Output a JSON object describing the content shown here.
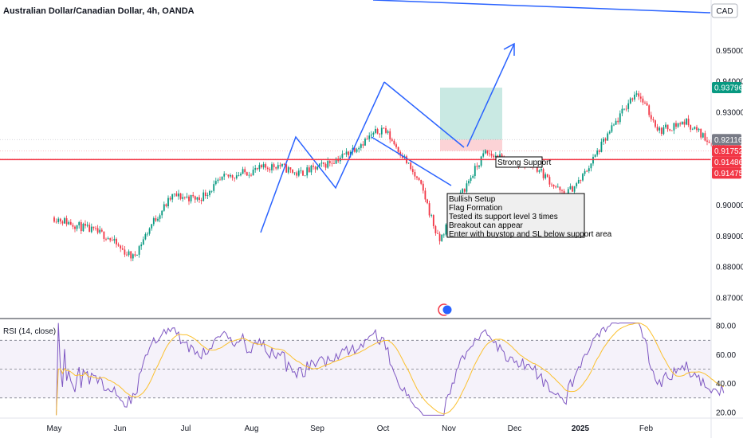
{
  "chart_data": {
    "type": "candlestick",
    "title": "Australian Dollar/Canadian Dollar, 4h, OANDA",
    "currency_label": "CAD",
    "price_axis": {
      "range": [
        0.8633,
        0.9663
      ],
      "ticks": [
        "0.95000",
        "0.94000",
        "0.93000",
        "0.90000",
        "0.89000",
        "0.88000",
        "0.87000"
      ]
    },
    "x_axis": {
      "labels": [
        "May",
        "Jun",
        "Jul",
        "Aug",
        "Sep",
        "Oct",
        "Nov",
        "Dec",
        "2025",
        "Feb"
      ]
    },
    "price_path": [
      {
        "t": 0.0,
        "p": 0.896
      },
      {
        "t": 0.8,
        "p": 0.89
      },
      {
        "t": 1.0,
        "p": 0.886
      },
      {
        "t": 1.2,
        "p": 0.883
      },
      {
        "t": 1.5,
        "p": 0.8945
      },
      {
        "t": 1.8,
        "p": 0.903
      },
      {
        "t": 2.2,
        "p": 0.902
      },
      {
        "t": 2.6,
        "p": 0.909
      },
      {
        "t": 3.0,
        "p": 0.911
      },
      {
        "t": 3.4,
        "p": 0.913
      },
      {
        "t": 3.7,
        "p": 0.91
      },
      {
        "t": 4.0,
        "p": 0.912
      },
      {
        "t": 4.4,
        "p": 0.916
      },
      {
        "t": 4.8,
        "p": 0.922
      },
      {
        "t": 5.0,
        "p": 0.925
      },
      {
        "t": 5.3,
        "p": 0.916
      },
      {
        "t": 5.6,
        "p": 0.905
      },
      {
        "t": 5.85,
        "p": 0.888
      },
      {
        "t": 6.2,
        "p": 0.904
      },
      {
        "t": 6.55,
        "p": 0.917
      },
      {
        "t": 6.9,
        "p": 0.914
      },
      {
        "t": 7.3,
        "p": 0.913
      },
      {
        "t": 7.75,
        "p": 0.903
      },
      {
        "t": 8.0,
        "p": 0.908
      },
      {
        "t": 8.4,
        "p": 0.922
      },
      {
        "t": 8.85,
        "p": 0.937
      },
      {
        "t": 9.2,
        "p": 0.924
      },
      {
        "t": 9.6,
        "p": 0.927
      },
      {
        "t": 10.0,
        "p": 0.92
      },
      {
        "t": 10.2,
        "p": 0.918
      }
    ],
    "current_price": {
      "label": "0.93796",
      "value": 0.93796,
      "color": "#089981"
    },
    "price_tags": [
      {
        "label": "0.92116",
        "value": 0.92116,
        "color": "#787b86"
      },
      {
        "label": "0.91752",
        "value": 0.91752,
        "color": "#f23645"
      },
      {
        "label": "0.91486",
        "value": 0.91486,
        "color": "#f23645"
      },
      {
        "label": "0.91475",
        "value": 0.91475,
        "color": "#f23645"
      }
    ],
    "support_line": {
      "value": 0.9147,
      "color": "#f23645"
    },
    "position": {
      "entry": 0.92116,
      "target": 0.93796,
      "stop": 0.91752
    },
    "annotations": {
      "strong_support": "Strong Support",
      "setup_lines": [
        "Bullish Setup",
        "Flag Formation",
        "Tested its support level 3 times",
        "Breakout can appear",
        "Enter with buystop and SL below support area"
      ]
    },
    "rsi": {
      "label": "RSI (14, close)",
      "range": [
        16,
        84
      ],
      "ticks": [
        "80.00",
        "60.00",
        "40.00",
        "20.00"
      ],
      "upper_band": 70,
      "lower_band": 30,
      "middle": 50
    }
  },
  "colors": {
    "up": "#089981",
    "down": "#f23645",
    "drawing": "#2962ff",
    "rsi_line": "#7e57c2",
    "rsi_ma": "#fbc02d"
  }
}
